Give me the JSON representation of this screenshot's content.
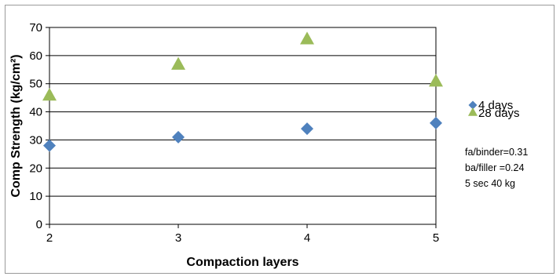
{
  "chart_data": {
    "type": "scatter",
    "title": "",
    "xlabel": "Compaction layers",
    "ylabel": "Comp Strength (kg/cm²)",
    "xlim": [
      2,
      5
    ],
    "ylim": [
      0,
      70
    ],
    "xticks": [
      2,
      3,
      4,
      5
    ],
    "yticks": [
      0,
      10,
      20,
      30,
      40,
      50,
      60,
      70
    ],
    "grid": "horizontal",
    "legend_position": "right",
    "series": [
      {
        "name": "4 days",
        "marker": "diamond",
        "color": "#4f81bd",
        "x": [
          2,
          3,
          4,
          5
        ],
        "y": [
          28,
          31,
          34,
          36
        ]
      },
      {
        "name": "28 days",
        "marker": "triangle",
        "color": "#9bbb59",
        "x": [
          2,
          3,
          4,
          5
        ],
        "y": [
          46,
          57,
          66,
          51
        ]
      }
    ],
    "annotations": [
      "fa/binder=0.31",
      "ba/filler =0.24",
      "5 sec 40 kg"
    ]
  }
}
